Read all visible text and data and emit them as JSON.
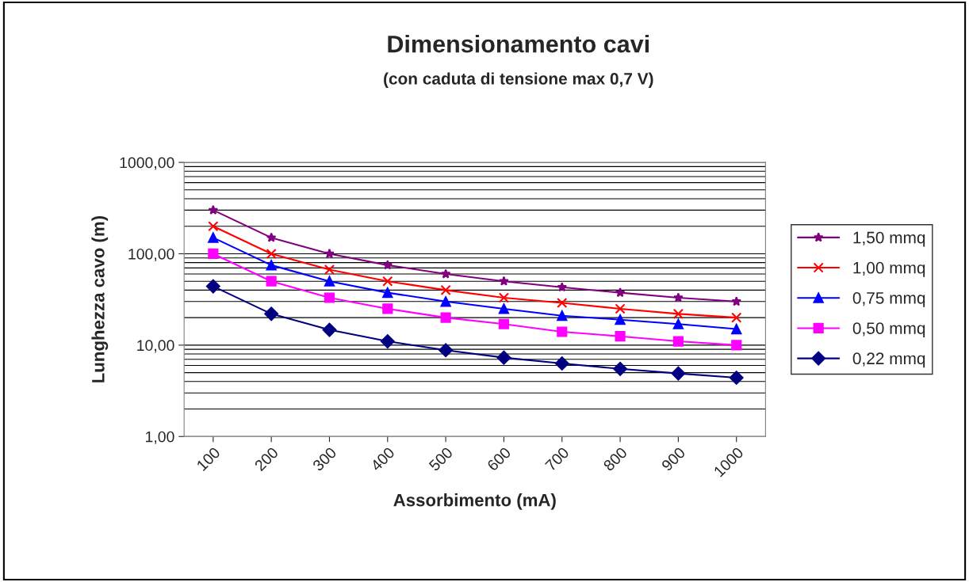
{
  "chart_data": {
    "type": "line",
    "title": "Dimensionamento cavi",
    "subtitle": "(con caduta di tensione max 0,7 V)",
    "xlabel": "Assorbimento (mA)",
    "ylabel": "Lunghezza cavo (m)",
    "categories": [
      "100",
      "200",
      "300",
      "400",
      "500",
      "600",
      "700",
      "800",
      "900",
      "1000"
    ],
    "log": "y",
    "ylim": [
      1,
      1000
    ],
    "yticks": [
      {
        "value": 1,
        "label": "1,00"
      },
      {
        "value": 10,
        "label": "10,00"
      },
      {
        "value": 100,
        "label": "100,00"
      },
      {
        "value": 1000,
        "label": "1000,00"
      }
    ],
    "grid": "y",
    "legend": "right",
    "series": [
      {
        "name": "1,50 mmq",
        "color": "#800080",
        "marker": "star",
        "values": [
          300,
          150,
          100,
          75,
          60,
          50,
          43,
          37.5,
          33,
          30
        ]
      },
      {
        "name": "1,00 mmq",
        "color": "#ff0000",
        "marker": "cross",
        "values": [
          200,
          100,
          67,
          50,
          40,
          33,
          29,
          25,
          22,
          20
        ]
      },
      {
        "name": "0,75 mmq",
        "color": "#0000ff",
        "marker": "triangle",
        "values": [
          150,
          75,
          50,
          37.5,
          30,
          25,
          21,
          19,
          17,
          15
        ]
      },
      {
        "name": "0,50 mmq",
        "color": "#ff00ff",
        "marker": "square",
        "values": [
          100,
          50,
          33,
          25,
          20,
          17,
          14,
          12.5,
          11,
          10
        ]
      },
      {
        "name": "0,22 mmq",
        "color": "#000080",
        "marker": "diamond",
        "values": [
          44,
          22,
          14.7,
          11,
          8.8,
          7.3,
          6.3,
          5.5,
          4.9,
          4.4
        ]
      }
    ]
  }
}
